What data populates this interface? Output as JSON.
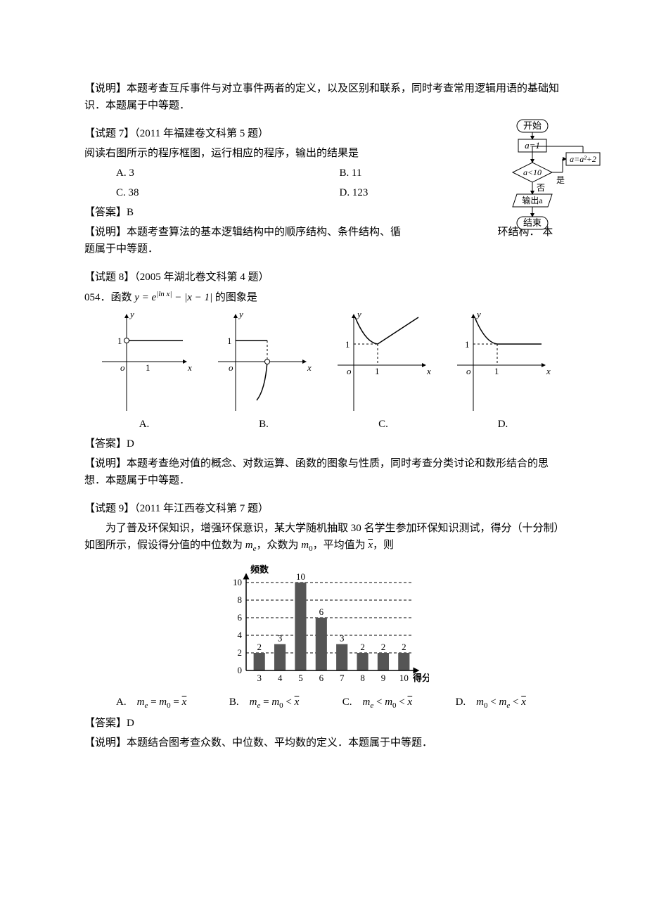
{
  "q6": {
    "explain": "【说明】本题考查互斥事件与对立事件两者的定义，以及区别和联系，同时考查常用逻辑用语的基础知识．本题属于中等题．"
  },
  "q7": {
    "heading": "【试题 7】（2011 年福建卷文科第 5 题）",
    "stem": "阅读右图所示的程序框图，运行相应的程序，输出的结果是",
    "choices": {
      "a": "A. 3",
      "b": "B. 11",
      "c": "C. 38",
      "d": "D. 123"
    },
    "answer": "【答案】B",
    "explain1": "【说明】本题考查算法的基本逻辑结构中的顺序结构、条件结构、循",
    "explain2": "环结构．",
    "explain3": "本题属于中等题．",
    "flow": {
      "start": "开始",
      "init": "a=1",
      "cond": "a<10",
      "no": "否",
      "yes": "是",
      "upd": "a=a²+2",
      "out": "输出a",
      "end": "结束",
      "box_stroke": "#000000",
      "box_fill": "#ffffff",
      "font_size": 13
    }
  },
  "q8": {
    "heading": "【试题 8】（2005 年湖北卷文科第 4 题）",
    "stem_pre": "054．函数 ",
    "stem_math": "y = e|ln x| − |x − 1|",
    "stem_post": " 的图象是",
    "labels": {
      "a": "A.",
      "b": "B.",
      "c": "C.",
      "d": "D."
    },
    "axes": {
      "x": "x",
      "y": "y",
      "o": "o",
      "one": "1"
    },
    "answer": "【答案】D",
    "explain": "【说明】本题考查绝对值的概念、对数运算、函数的图象与性质，同时考查分类讨论和数形结合的思想．本题属于中等题．",
    "style": {
      "axis_color": "#000000",
      "dash": "3,3",
      "open_fill": "#ffffff"
    }
  },
  "q9": {
    "heading": "【试题 9】（2011 年江西卷文科第 7 题）",
    "stem1": "　　为了普及环保知识，增强环保意识，某大学随机抽取 30 名学生参加环保知识测试，得分（十分制）如图所示，假设得分值的中位数为 ",
    "stem2": "，众数为 ",
    "stem3": "，平均值为 ",
    "stem4": "，则",
    "me": "mₑ",
    "m0": "m₀",
    "xbar": "x̄",
    "hist": {
      "ylabel": "频数",
      "xlabel": "得分",
      "categories": [
        "3",
        "4",
        "5",
        "6",
        "7",
        "8",
        "9",
        "10"
      ],
      "values": [
        2,
        3,
        10,
        6,
        3,
        2,
        2,
        2
      ],
      "bar_fill": "#555555",
      "axis_color": "#000000",
      "grid_dash": "4,3",
      "yticks": [
        0,
        2,
        4,
        6,
        8,
        10
      ],
      "font_size": 13,
      "bar_width": 0.55
    },
    "choices": {
      "a_pre": "A.　",
      "b_pre": "B.　",
      "c_pre": "C.　",
      "d_pre": "D.　"
    },
    "answer": "【答案】D",
    "explain": "【说明】本题结合图考查众数、中位数、平均数的定义．本题属于中等题．"
  }
}
